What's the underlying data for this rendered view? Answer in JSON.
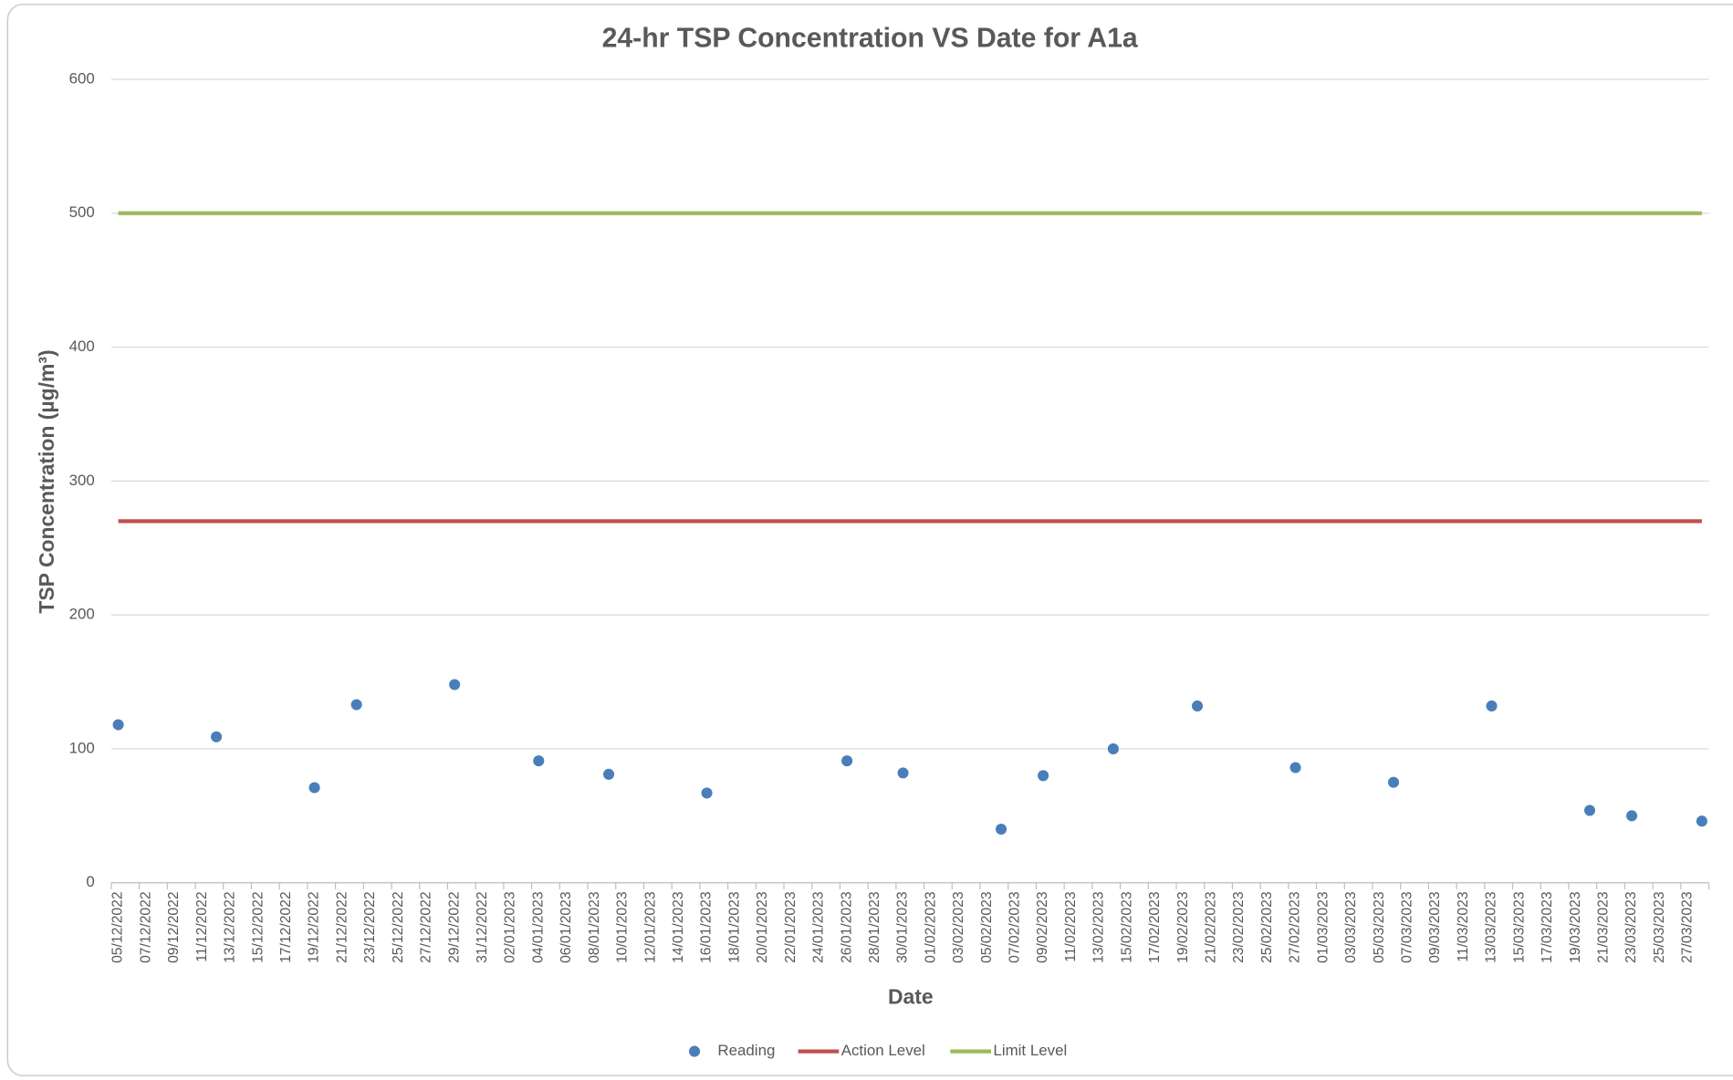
{
  "chart_data": {
    "type": "scatter",
    "title": "24-hr TSP Concentration VS Date for A1a",
    "x_label": "Date",
    "y_label": "TSP Concentration (µg/m³)",
    "xlim": [
      "05/12/2022",
      "28/03/2023"
    ],
    "xticks": [
      "05/12/2022",
      "07/12/2022",
      "09/12/2022",
      "11/12/2022",
      "13/12/2022",
      "15/12/2022",
      "17/12/2022",
      "19/12/2022",
      "21/12/2022",
      "23/12/2022",
      "25/12/2022",
      "27/12/2022",
      "29/12/2022",
      "31/12/2022",
      "02/01/2023",
      "04/01/2023",
      "06/01/2023",
      "08/01/2023",
      "10/01/2023",
      "12/01/2023",
      "14/01/2023",
      "16/01/2023",
      "18/01/2023",
      "20/01/2023",
      "22/01/2023",
      "24/01/2023",
      "26/01/2023",
      "28/01/2023",
      "30/01/2023",
      "01/02/2023",
      "03/02/2023",
      "05/02/2023",
      "07/02/2023",
      "09/02/2023",
      "11/02/2023",
      "13/02/2023",
      "15/02/2023",
      "17/02/2023",
      "19/02/2023",
      "21/02/2023",
      "23/02/2023",
      "25/02/2023",
      "27/02/2023",
      "01/03/2023",
      "03/03/2023",
      "05/03/2023",
      "07/03/2023",
      "09/03/2023",
      "11/03/2023",
      "13/03/2023",
      "15/03/2023",
      "17/03/2023",
      "19/03/2023",
      "21/03/2023",
      "23/03/2023",
      "25/03/2023",
      "27/03/2023"
    ],
    "ylim": [
      0,
      600
    ],
    "yticks": [
      0,
      100,
      200,
      300,
      400,
      500,
      600
    ],
    "grid": true,
    "legend": "bottom",
    "series": [
      {
        "name": "Reading",
        "mode": "markers",
        "color": "#4a7ebb",
        "x": [
          "05/12/2022",
          "12/12/2022",
          "19/12/2022",
          "22/12/2022",
          "29/12/2022",
          "04/01/2023",
          "09/01/2023",
          "16/01/2023",
          "26/01/2023",
          "30/01/2023",
          "06/02/2023",
          "09/02/2023",
          "14/02/2023",
          "20/02/2023",
          "27/02/2023",
          "06/03/2023",
          "13/03/2023",
          "20/03/2023",
          "23/03/2023",
          "28/03/2023"
        ],
        "values": [
          118,
          109,
          71,
          133,
          148,
          91,
          81,
          67,
          91,
          82,
          40,
          80,
          100,
          132,
          86,
          75,
          132,
          54,
          50,
          46
        ]
      },
      {
        "name": "Action Level",
        "mode": "lines",
        "color": "#c0504d",
        "x": [
          "05/12/2022",
          "28/03/2023"
        ],
        "values": [
          270,
          270
        ]
      },
      {
        "name": "Limit Level",
        "mode": "lines",
        "color": "#9bbb59",
        "x": [
          "05/12/2022",
          "28/03/2023"
        ],
        "values": [
          500,
          500
        ]
      }
    ]
  }
}
